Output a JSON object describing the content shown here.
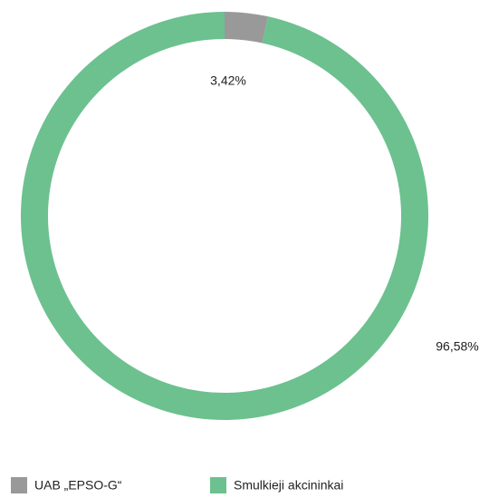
{
  "chart_data": {
    "type": "donut",
    "categories": [
      "UAB „EPSO-G“",
      "Smulkieji akcininkai"
    ],
    "values": [
      3.42,
      96.58
    ],
    "value_labels": [
      "3,42%",
      "96,58%"
    ],
    "colors": [
      "#999999",
      "#6cc18f"
    ],
    "legend": "bottom"
  }
}
